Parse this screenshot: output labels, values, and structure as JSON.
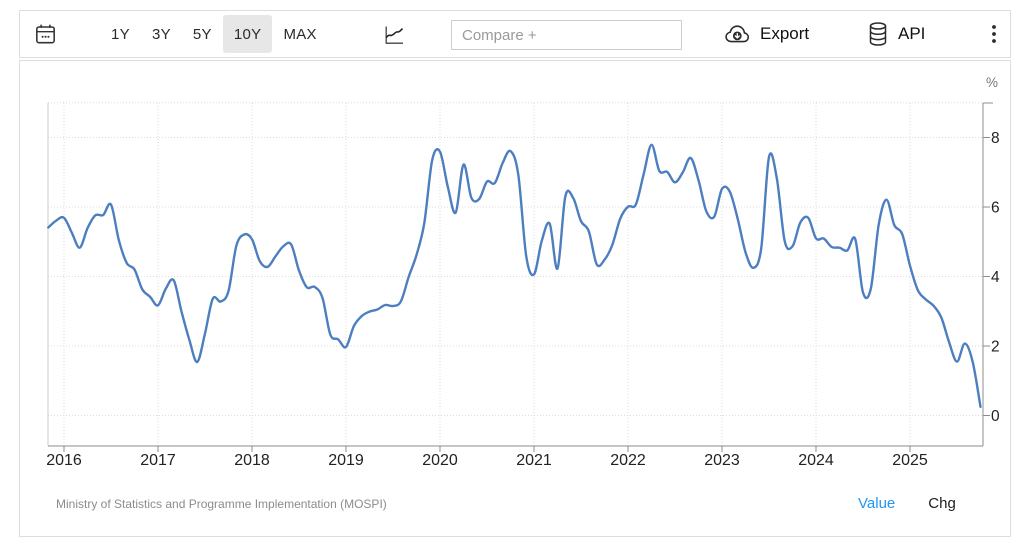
{
  "toolbar": {
    "calendar_icon": "calendar-icon",
    "ranges": [
      {
        "label": "1Y",
        "selected": false
      },
      {
        "label": "3Y",
        "selected": false
      },
      {
        "label": "5Y",
        "selected": false
      },
      {
        "label": "10Y",
        "selected": true
      },
      {
        "label": "MAX",
        "selected": false
      }
    ],
    "chart_type_icon": "line-chart-icon",
    "compare_placeholder": "Compare +",
    "export_label": "Export",
    "export_icon": "cloud-download-icon",
    "api_label": "API",
    "api_icon": "database-icon",
    "more_menu_icon": "kebab-menu-icon"
  },
  "footer": {
    "source": "Ministry of Statistics and Programme Implementation (MOSPI)",
    "value_label": "Value",
    "chg_label": "Chg"
  },
  "chart_data": {
    "type": "line",
    "unit": "%",
    "frequency": "monthly",
    "start": "2015-11",
    "end": "2025-10",
    "x_ticks": [
      "2016",
      "2017",
      "2018",
      "2019",
      "2020",
      "2021",
      "2022",
      "2023",
      "2024",
      "2025"
    ],
    "y_ticks": [
      0,
      2,
      4,
      6,
      8
    ],
    "ylim": [
      -0.88,
      9.0
    ],
    "grid": "dotted",
    "axis_side": "right",
    "values": [
      5.41,
      5.61,
      5.69,
      5.26,
      4.83,
      5.39,
      5.76,
      5.77,
      6.07,
      5.05,
      4.39,
      4.2,
      3.63,
      3.41,
      3.17,
      3.65,
      3.89,
      2.99,
      2.18,
      1.54,
      2.36,
      3.36,
      3.28,
      3.58,
      4.88,
      5.21,
      5.07,
      4.44,
      4.28,
      4.58,
      4.87,
      4.92,
      4.17,
      3.69,
      3.7,
      3.38,
      2.33,
      2.19,
      1.97,
      2.57,
      2.86,
      2.99,
      3.05,
      3.18,
      3.15,
      3.28,
      3.99,
      4.62,
      5.54,
      7.35,
      7.59,
      6.58,
      5.84,
      7.22,
      6.27,
      6.23,
      6.73,
      6.69,
      7.27,
      7.61,
      6.93,
      4.59,
      4.06,
      5.03,
      5.52,
      4.23,
      6.3,
      6.26,
      5.59,
      5.3,
      4.35,
      4.48,
      4.91,
      5.66,
      6.01,
      6.07,
      6.95,
      7.79,
      7.04,
      7.01,
      6.71,
      7.0,
      7.41,
      6.77,
      5.88,
      5.72,
      6.52,
      6.44,
      5.66,
      4.7,
      4.25,
      4.81,
      7.44,
      6.83,
      5.02,
      4.87,
      5.55,
      5.69,
      5.1,
      5.09,
      4.85,
      4.83,
      4.75,
      5.08,
      3.54,
      3.65,
      5.49,
      6.21,
      5.48,
      5.22,
      4.31,
      3.61,
      3.34,
      3.16,
      2.82,
      2.1,
      1.55,
      2.07,
      1.54,
      0.25
    ]
  },
  "colors": {
    "line": "#4d7ebf",
    "grid": "#dcdcdc",
    "axis": "#8c8c8c",
    "plot_left_border": "#cccccc",
    "tick_text": "#222222",
    "muted_text": "#8a8a8a",
    "accent": "#2196f3",
    "selected_range_bg": "#e7e7e7"
  }
}
